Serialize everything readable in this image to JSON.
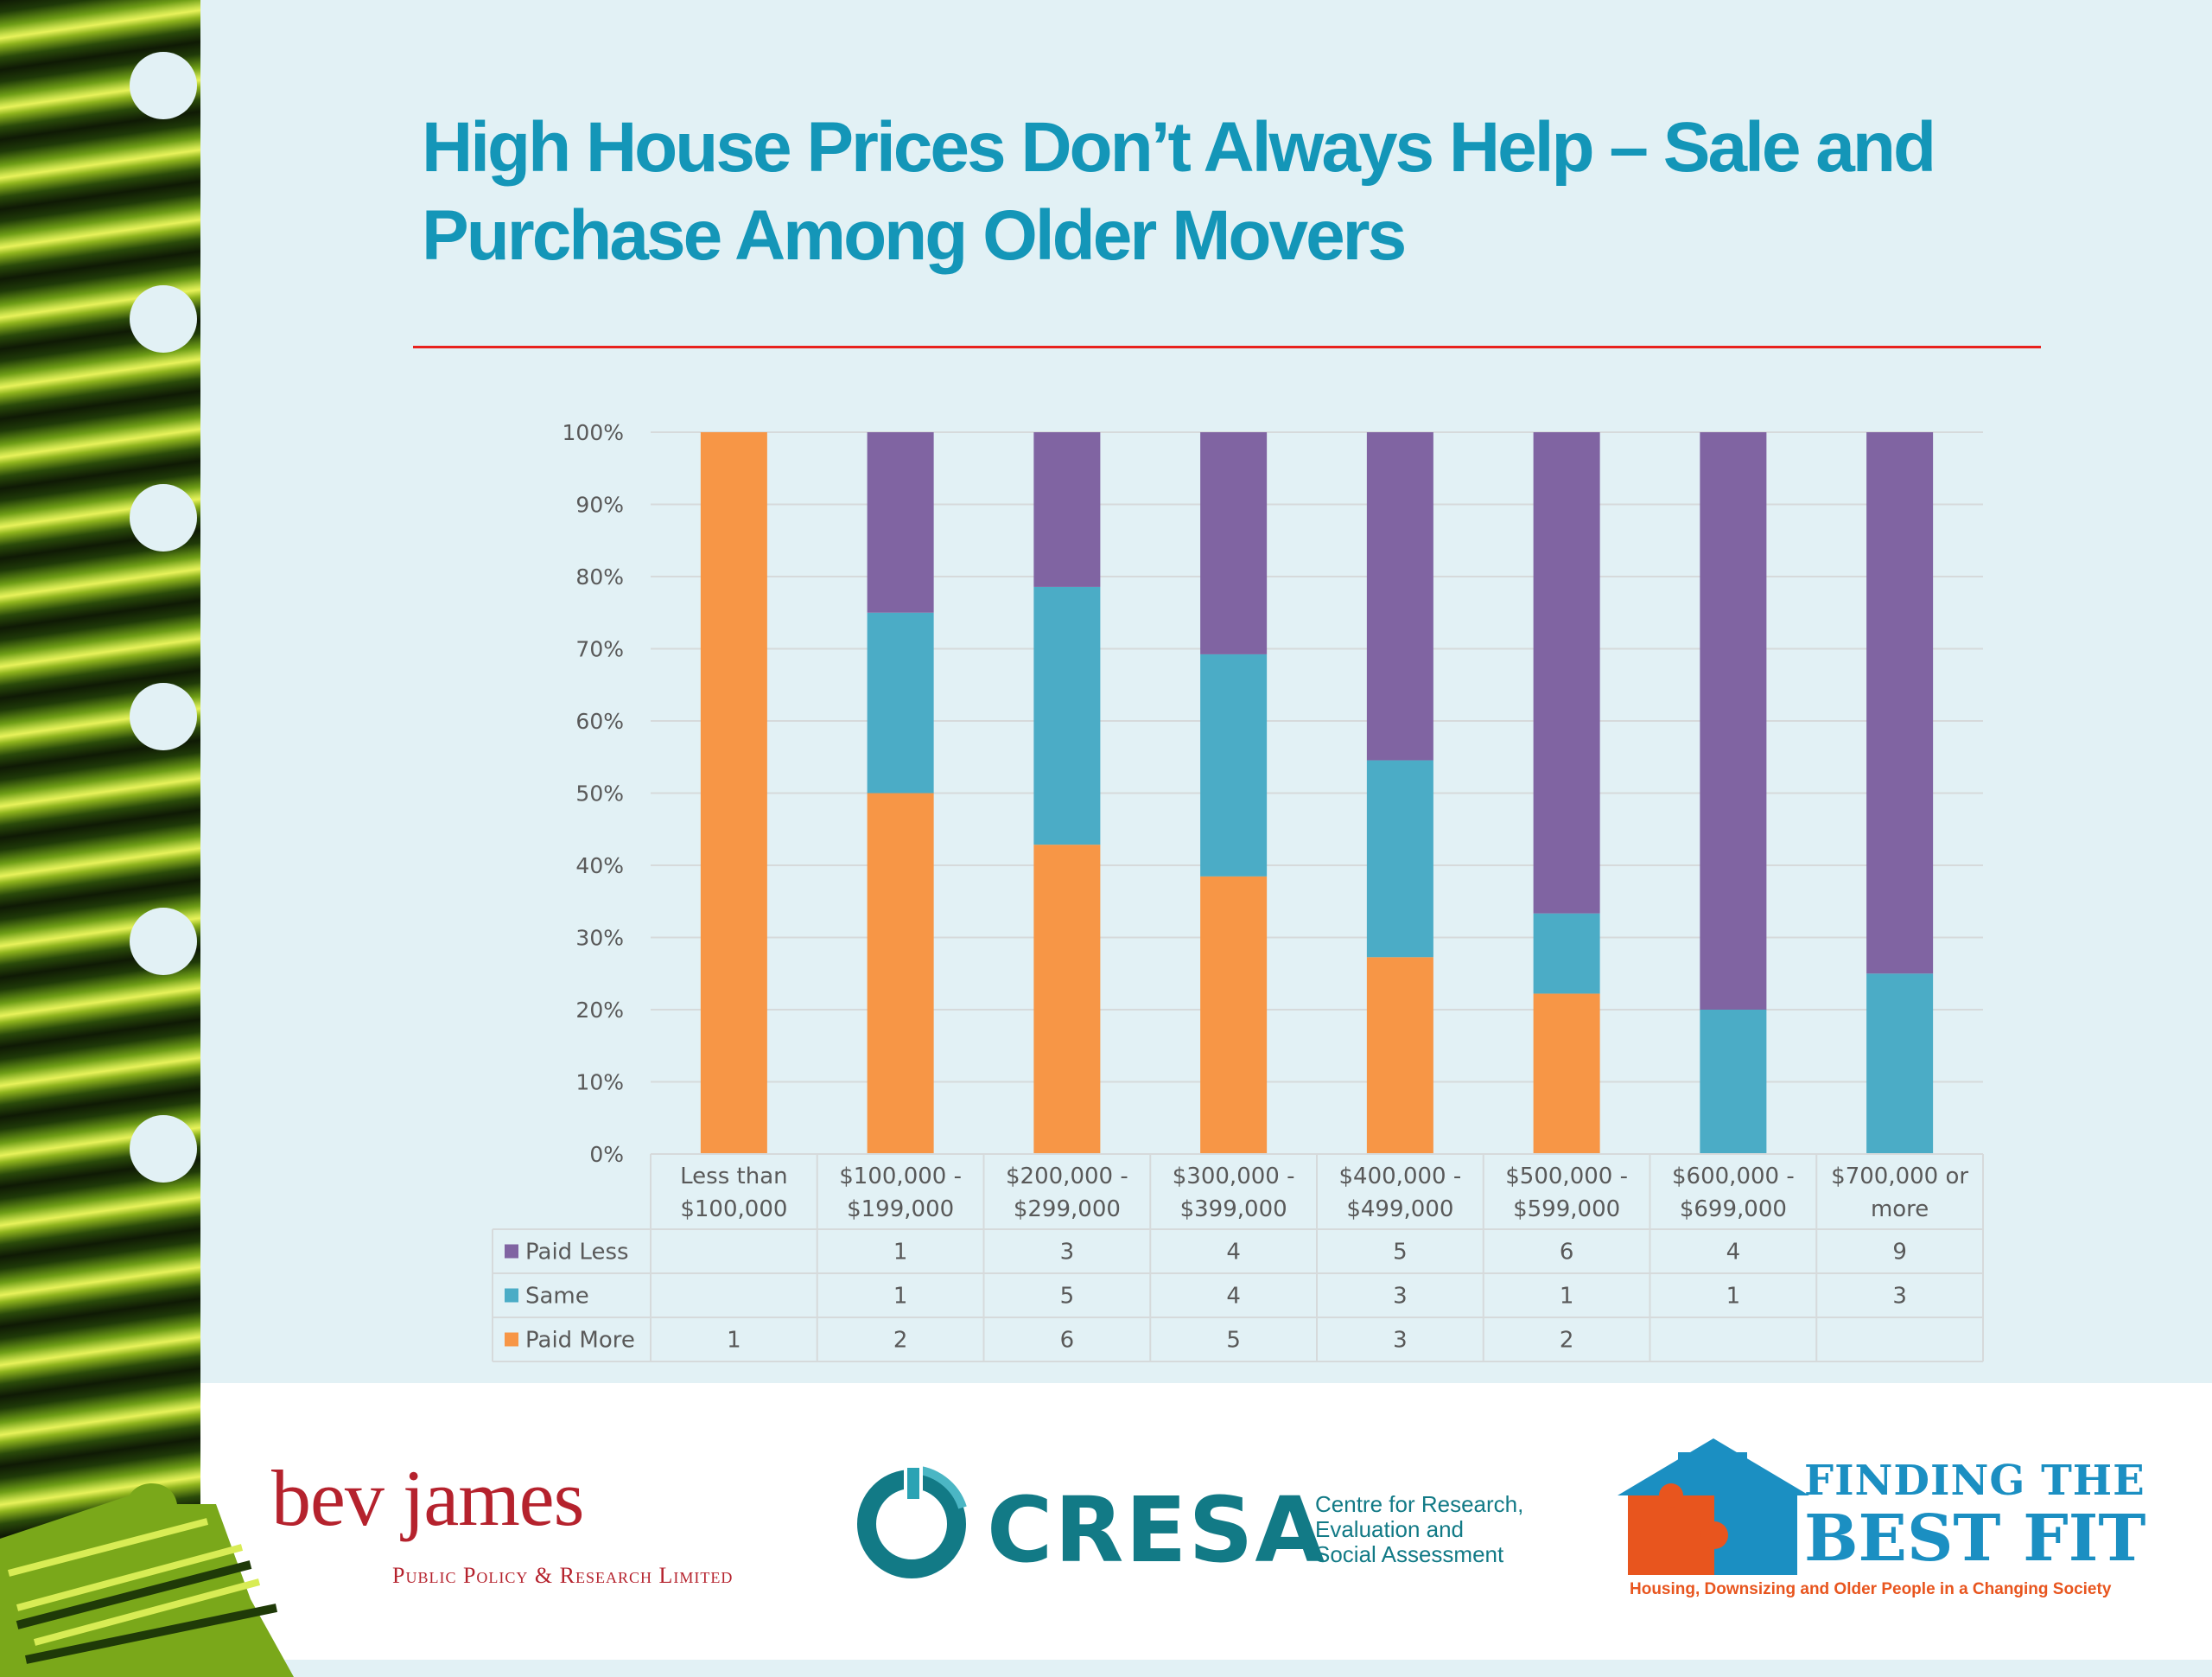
{
  "slide": {
    "title": "High House Prices Don’t Always Help – Sale and Purchase Among Older Movers",
    "colors": {
      "title": "#1496b8",
      "rule": "#e8221e",
      "paid_less": "#8064a2",
      "same": "#4bacc6",
      "paid_more": "#f79646"
    }
  },
  "chart_data": {
    "type": "bar",
    "stacked": "percent",
    "categories": [
      [
        "Less than",
        "$100,000"
      ],
      [
        "$100,000 -",
        "$199,000"
      ],
      [
        "$200,000 -",
        "$299,000"
      ],
      [
        "$300,000 -",
        "$399,000"
      ],
      [
        "$400,000 -",
        "$499,000"
      ],
      [
        "$500,000 -",
        "$599,000"
      ],
      [
        "$600,000 -",
        "$699,000"
      ],
      [
        "$700,000 or",
        "more"
      ]
    ],
    "series": [
      {
        "name": "Paid Less",
        "color": "#8064a2",
        "values": [
          null,
          1,
          3,
          4,
          5,
          6,
          4,
          9
        ]
      },
      {
        "name": "Same",
        "color": "#4bacc6",
        "values": [
          null,
          1,
          5,
          4,
          3,
          1,
          1,
          3
        ]
      },
      {
        "name": "Paid More",
        "color": "#f79646",
        "values": [
          1,
          2,
          6,
          5,
          3,
          2,
          null,
          null
        ]
      }
    ],
    "stack_order_bottom_up": [
      "Paid More",
      "Same",
      "Paid Less"
    ],
    "y_ticks": [
      "0%",
      "10%",
      "20%",
      "30%",
      "40%",
      "50%",
      "60%",
      "70%",
      "80%",
      "90%",
      "100%"
    ],
    "ylim": [
      0,
      100
    ],
    "grid": true,
    "legend": "data-table",
    "xlabel": "",
    "ylabel": ""
  },
  "footer": {
    "bev_james": {
      "name": "bev james",
      "subtitle": "Public Policy & Research Limited"
    },
    "cresa": {
      "name": "CRESA",
      "description": [
        "Centre for Research,",
        "Evaluation and",
        "Social Assessment"
      ]
    },
    "best_fit": {
      "line1": "FINDING THE",
      "line2": "BEST FIT",
      "tagline": "Housing, Downsizing and Older People in a Changing Society"
    }
  }
}
